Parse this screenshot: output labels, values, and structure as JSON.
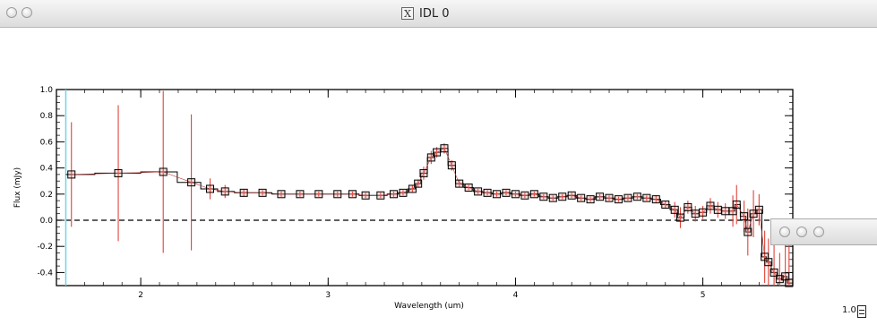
{
  "window": {
    "title": "IDL 0",
    "app_icon": "x11-icon"
  },
  "overlay_window": {
    "visible_controls": [
      "close",
      "minimize",
      "zoom"
    ]
  },
  "corner_label": "1.0",
  "chart_data": {
    "type": "scatter",
    "title": "",
    "xlabel": "Wavelength (um)",
    "ylabel": "Flux (mJy)",
    "xlim": [
      1.55,
      5.48
    ],
    "ylim": [
      -0.5,
      1.0
    ],
    "xticks": [
      2,
      3,
      4,
      5
    ],
    "xtick_labels": [
      "2",
      "3",
      "4",
      "5"
    ],
    "yticks": [
      -0.4,
      -0.2,
      0.0,
      0.2,
      0.4,
      0.6,
      0.8,
      1.0
    ],
    "ytick_labels": [
      "-0.4",
      "-0.2",
      "0.0",
      "0.2",
      "0.4",
      "0.6",
      "0.8",
      "1.0"
    ],
    "reference_lines": {
      "horizontal_dashed_y": 0.0,
      "vertical_cyan_x": 1.6
    },
    "series": [
      {
        "style": "squares with red error bars and black histogram line",
        "x": [
          1.63,
          1.88,
          2.12,
          2.27,
          2.37,
          2.45,
          2.55,
          2.65,
          2.75,
          2.85,
          2.95,
          3.05,
          3.13,
          3.2,
          3.28,
          3.35,
          3.4,
          3.45,
          3.48,
          3.51,
          3.55,
          3.58,
          3.62,
          3.66,
          3.7,
          3.75,
          3.8,
          3.85,
          3.9,
          3.95,
          4.0,
          4.05,
          4.1,
          4.15,
          4.2,
          4.25,
          4.3,
          4.35,
          4.4,
          4.45,
          4.5,
          4.55,
          4.6,
          4.65,
          4.7,
          4.75,
          4.8,
          4.85,
          4.88,
          4.92,
          4.96,
          5.0,
          5.04,
          5.08,
          5.12,
          5.16,
          5.18,
          5.22,
          5.24,
          5.27,
          5.3,
          5.33,
          5.35,
          5.38,
          5.41,
          5.44,
          5.46
        ],
        "y": [
          0.35,
          0.36,
          0.37,
          0.29,
          0.24,
          0.22,
          0.21,
          0.21,
          0.2,
          0.2,
          0.2,
          0.2,
          0.2,
          0.19,
          0.19,
          0.2,
          0.21,
          0.24,
          0.28,
          0.36,
          0.48,
          0.52,
          0.55,
          0.42,
          0.28,
          0.25,
          0.22,
          0.21,
          0.2,
          0.21,
          0.2,
          0.19,
          0.2,
          0.18,
          0.17,
          0.18,
          0.19,
          0.17,
          0.16,
          0.18,
          0.17,
          0.16,
          0.17,
          0.18,
          0.17,
          0.16,
          0.12,
          0.08,
          0.02,
          0.1,
          0.05,
          0.06,
          0.11,
          0.08,
          0.07,
          0.07,
          0.12,
          0.03,
          -0.09,
          0.05,
          0.08,
          -0.28,
          -0.32,
          -0.4,
          -0.45,
          -0.43,
          -0.48
        ],
        "yerr": [
          0.4,
          0.52,
          0.62,
          0.52,
          0.08,
          0.05,
          0.03,
          0.02,
          0.02,
          0.02,
          0.02,
          0.02,
          0.02,
          0.02,
          0.02,
          0.02,
          0.02,
          0.03,
          0.03,
          0.05,
          0.05,
          0.04,
          0.04,
          0.04,
          0.03,
          0.02,
          0.02,
          0.02,
          0.02,
          0.02,
          0.02,
          0.02,
          0.02,
          0.02,
          0.02,
          0.02,
          0.02,
          0.02,
          0.02,
          0.02,
          0.02,
          0.02,
          0.02,
          0.02,
          0.02,
          0.03,
          0.03,
          0.06,
          0.08,
          0.05,
          0.06,
          0.05,
          0.06,
          0.06,
          0.06,
          0.12,
          0.15,
          0.12,
          0.18,
          0.18,
          0.12,
          0.2,
          0.18,
          0.22,
          0.2,
          0.4,
          0.4
        ]
      }
    ]
  }
}
